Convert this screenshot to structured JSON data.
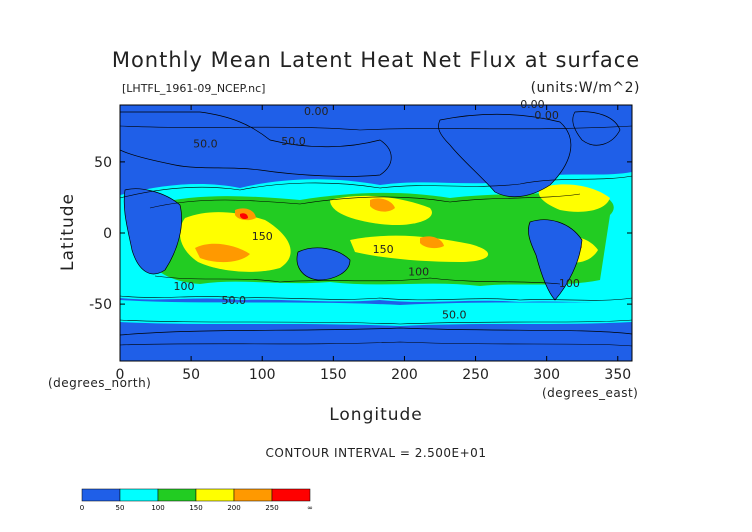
{
  "chart_data": {
    "type": "heatmap",
    "title": "Monthly Mean Latent Heat Net Flux at surface",
    "subtitle": "[LHTFL_1961-09_NCEP.nc]",
    "units": "(units:W/m^2)",
    "xlabel": "Longitude",
    "ylabel": "Latitude",
    "x_unit_note": "(degrees_east)",
    "y_unit_note": "(degrees_north)",
    "xlim": [
      0,
      360
    ],
    "ylim": [
      -90,
      90
    ],
    "x_ticks": [
      0,
      50,
      100,
      150,
      200,
      250,
      300,
      350
    ],
    "y_ticks": [
      -50,
      0,
      50
    ],
    "contour_interval": "CONTOUR INTERVAL = 2.500E+01",
    "contour_labels": [
      {
        "lon": 290,
        "lat": 88,
        "text": "0.00"
      },
      {
        "lon": 300,
        "lat": 80,
        "text": "0.00"
      },
      {
        "lon": 138,
        "lat": 83,
        "text": "0.00"
      },
      {
        "lon": 122,
        "lat": 62,
        "text": "50.0"
      },
      {
        "lon": 60,
        "lat": 60,
        "text": "50.0"
      },
      {
        "lon": 100,
        "lat": -5,
        "text": "150"
      },
      {
        "lon": 185,
        "lat": -14,
        "text": "150"
      },
      {
        "lon": 210,
        "lat": -30,
        "text": "100"
      },
      {
        "lon": 45,
        "lat": -40,
        "text": "100"
      },
      {
        "lon": 80,
        "lat": -50,
        "text": "50.0"
      },
      {
        "lon": 235,
        "lat": -60,
        "text": "50.0"
      },
      {
        "lon": 316,
        "lat": -38,
        "text": "100"
      }
    ],
    "colorbar": {
      "levels": [
        "0",
        "50",
        "100",
        "150",
        "200",
        "250",
        "∞"
      ],
      "colors": [
        "#1f5fe8",
        "#00ffff",
        "#22cc22",
        "#ffff00",
        "#ff9900",
        "#ff0000"
      ]
    }
  }
}
